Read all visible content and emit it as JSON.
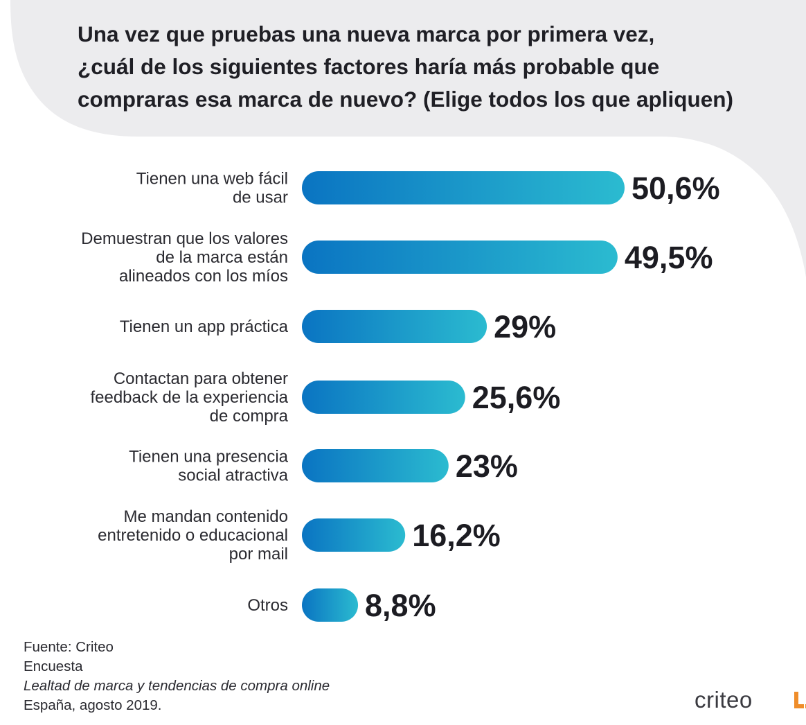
{
  "chart_data": {
    "type": "bar",
    "orientation": "horizontal",
    "title_lines": [
      "Una vez que pruebas una nueva marca por primera vez,",
      "¿cuál de los siguientes factores haría más probable que",
      "compraras esa marca de nuevo? (Elige todos los que apliquen)"
    ],
    "categories": [
      [
        "Tienen una web fácil",
        "de usar"
      ],
      [
        "Demuestran que los valores",
        "de la marca están",
        "alineados con los míos"
      ],
      [
        "Tienen un app práctica"
      ],
      [
        "Contactan para obtener",
        "feedback de la experiencia",
        "de compra"
      ],
      [
        "Tienen una presencia",
        "social atractiva"
      ],
      [
        "Me mandan contenido",
        "entretenido o educacional",
        "por mail"
      ],
      [
        "Otros"
      ]
    ],
    "values": [
      50.6,
      49.5,
      29,
      25.6,
      23,
      16.2,
      8.8
    ],
    "value_labels": [
      "50,6%",
      "49,5%",
      "29%",
      "25,6%",
      "23%",
      "16,2%",
      "8,8%"
    ],
    "bar_gradient": [
      "#0a74c2",
      "#2bbbd0"
    ],
    "grid": false,
    "legend": false
  },
  "source": {
    "line1": "Fuente: Criteo",
    "line2": "Encuesta",
    "line3": "Lealtad de marca y tendencias de compra online",
    "line4": "España, agosto 2019."
  },
  "logo": {
    "text": "criteo",
    "accent_color": "#ef8d2a"
  }
}
